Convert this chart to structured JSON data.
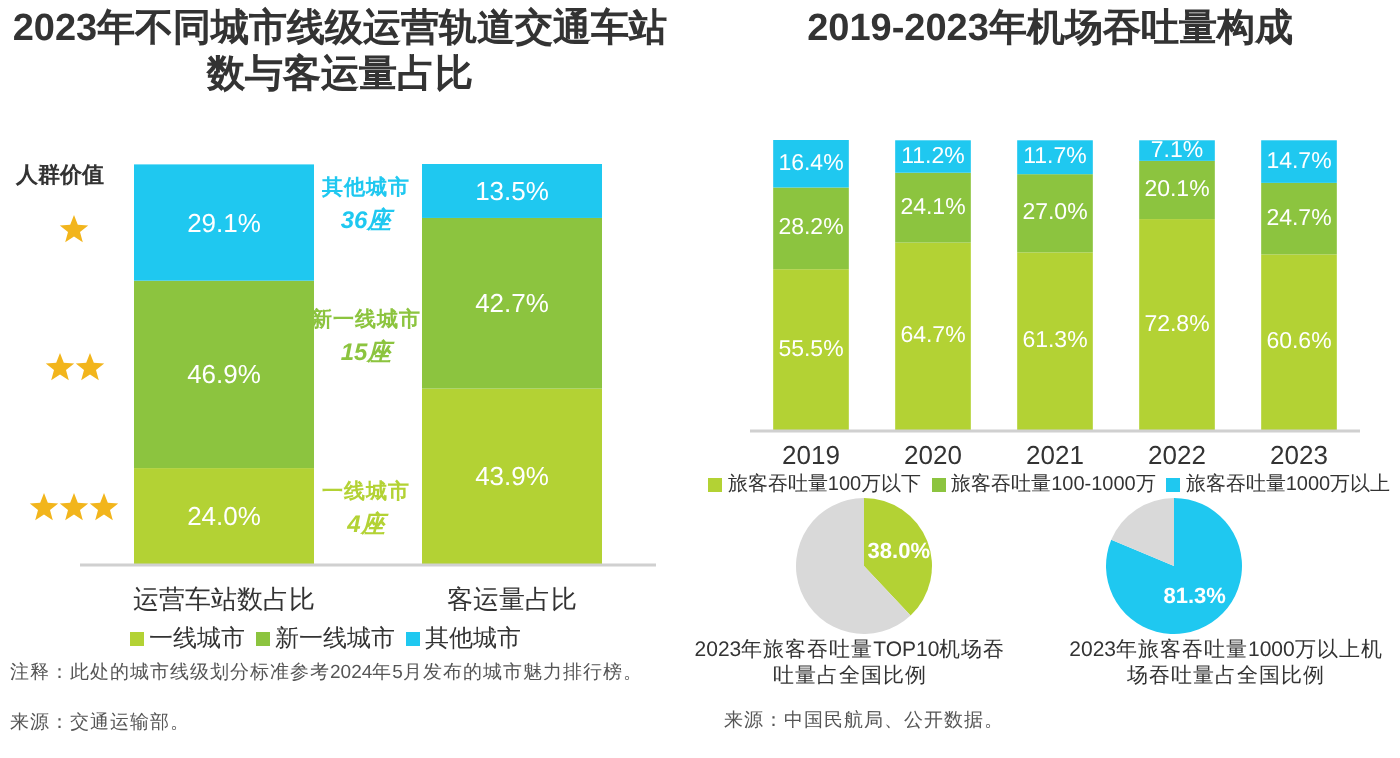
{
  "chart_data": [
    {
      "type": "bar",
      "title": "2023年不同城市线级运营轨道交通车站数与客运量占比",
      "categories": [
        "运营车站数占比",
        "客运量占比"
      ],
      "stacked": true,
      "legend": "bottom",
      "series": [
        {
          "name": "一线城市",
          "color": "#b3d234",
          "values": [
            24.0,
            43.9
          ],
          "value_labels": [
            "24.0%",
            "43.9%"
          ]
        },
        {
          "name": "新一线城市",
          "color": "#8cc43f",
          "values": [
            46.9,
            42.7
          ],
          "value_labels": [
            "46.9%",
            "42.7%"
          ]
        },
        {
          "name": "其他城市",
          "color": "#1fc8f0",
          "values": [
            29.1,
            13.5
          ],
          "value_labels": [
            "29.1%",
            "13.5%"
          ]
        }
      ],
      "annotations": [
        "人群价值",
        "其他城市",
        "36座",
        "新一线城市",
        "15座",
        "一线城市",
        "4座",
        "注释：此处的城市线级划分标准参考2024年5月发布的城市魅力排行榜。",
        "来源：交通运输部。"
      ]
    },
    {
      "type": "bar",
      "title": "2019-2023年机场吞吐量构成",
      "categories": [
        "2019",
        "2020",
        "2021",
        "2022",
        "2023"
      ],
      "stacked": true,
      "legend": "bottom",
      "series": [
        {
          "name": "旅客吞吐量100万以下",
          "color": "#b3d234",
          "values": [
            55.5,
            64.7,
            61.3,
            72.8,
            60.6
          ],
          "value_labels": [
            "55.5%",
            "64.7%",
            "61.3%",
            "72.8%",
            "60.6%"
          ]
        },
        {
          "name": "旅客吞吐量100-1000万",
          "color": "#8cc43f",
          "values": [
            28.2,
            24.1,
            27.0,
            20.1,
            24.7
          ],
          "value_labels": [
            "28.2%",
            "24.1%",
            "27.0%",
            "20.1%",
            "24.7%"
          ]
        },
        {
          "name": "旅客吞吐量1000万以上",
          "color": "#1fc8f0",
          "values": [
            16.4,
            11.2,
            11.7,
            7.1,
            14.7
          ],
          "value_labels": [
            "16.4%",
            "11.2%",
            "11.7%",
            "7.1%",
            "14.7%"
          ]
        }
      ]
    },
    {
      "type": "pie",
      "title": "2023年旅客吞吐量TOP10机场吞吐量占全国比例",
      "categories": [
        null,
        null
      ],
      "values": [
        38.0,
        62.0
      ],
      "colors": [
        "#b3d234",
        "#d9d9d9"
      ],
      "value_labels": [
        "38.0%",
        null
      ]
    },
    {
      "type": "pie",
      "title": "2023年旅客吞吐量1000万以上机场吞吐量占全国比例",
      "categories": [
        null,
        null
      ],
      "values": [
        81.3,
        18.7
      ],
      "colors": [
        "#1fc8f0",
        "#d9d9d9"
      ],
      "value_labels": [
        "81.3%",
        null
      ],
      "annotations": [
        "来源：中国民航局、公开数据。"
      ]
    }
  ]
}
